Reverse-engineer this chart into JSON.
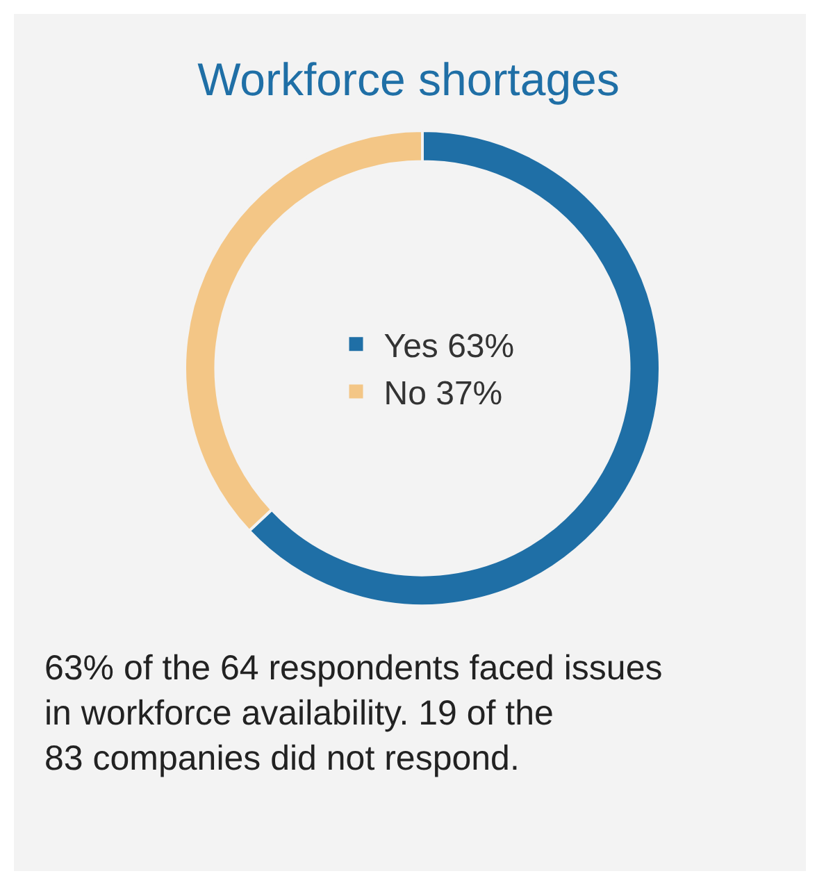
{
  "chart_data": {
    "type": "donut",
    "title": "Workforce shortages",
    "categories": [
      "Yes",
      "No"
    ],
    "values": [
      63,
      37
    ],
    "colors": [
      "#1f6fa6",
      "#f3c686"
    ],
    "value_labels": [
      "63%",
      "37%"
    ],
    "legend": "center",
    "annotations": [
      "63% of the 64 respondents faced issues in workforce availability. 19 of the 83 companies did not respond."
    ]
  }
}
